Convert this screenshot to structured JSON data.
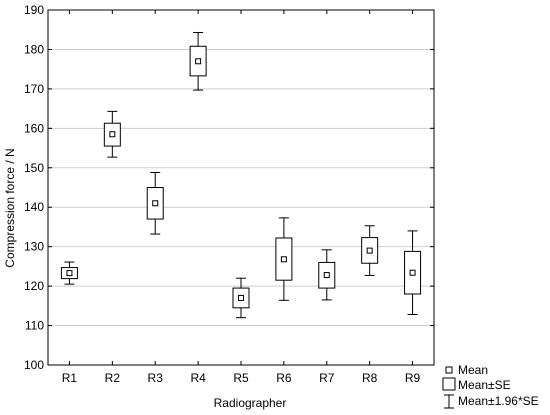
{
  "chart_data": {
    "type": "box",
    "xlabel": "Radiographer",
    "ylabel": "Compression force / N",
    "ylim": [
      100,
      190
    ],
    "yticks": [
      100,
      110,
      120,
      130,
      140,
      150,
      160,
      170,
      180,
      190
    ],
    "grid": true,
    "legend_position": "bottom-right",
    "categories": [
      "R1",
      "R2",
      "R3",
      "R4",
      "R5",
      "R6",
      "R7",
      "R8",
      "R9"
    ],
    "mean": [
      123.3,
      158.5,
      141.0,
      177.0,
      117.0,
      126.8,
      122.8,
      129.0,
      123.4
    ],
    "se_low": [
      121.9,
      155.5,
      137.0,
      173.3,
      114.5,
      121.5,
      119.5,
      125.8,
      118.0
    ],
    "se_high": [
      124.7,
      161.3,
      145.0,
      180.8,
      119.5,
      132.2,
      126.0,
      132.3,
      128.8
    ],
    "ci_low": [
      120.5,
      152.7,
      133.2,
      169.7,
      112.0,
      116.4,
      116.5,
      122.7,
      112.8
    ],
    "ci_high": [
      126.1,
      164.3,
      148.8,
      184.3,
      122.0,
      137.3,
      129.2,
      135.3,
      134.0
    ],
    "legend": {
      "mean": "Mean",
      "se": "Mean±SE",
      "ci": "Mean±1.96*SE"
    }
  }
}
